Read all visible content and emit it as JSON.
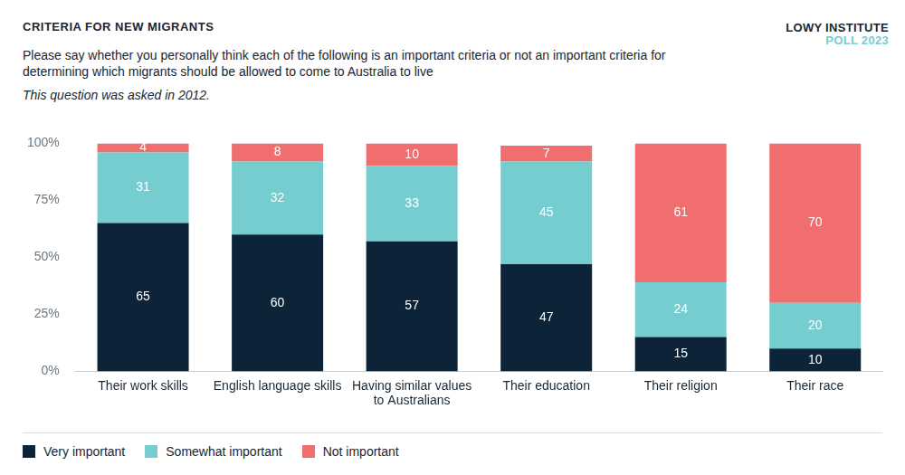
{
  "chart_data": {
    "type": "bar",
    "title": "CRITERIA FOR NEW MIGRANTS",
    "subtitle": "Please say whether you personally think each of the following is an important criteria or not an important criteria for determining which migrants should be allowed to come to Australia to live",
    "note": "This question was asked in 2012.",
    "source": [
      "LOWY INSTITUTE",
      "POLL 2023"
    ],
    "categories": [
      "Their work skills",
      "English language skills",
      "Having similar values to Australians",
      "Their education",
      "Their religion",
      "Their race"
    ],
    "series": [
      {
        "name": "Very important",
        "color": "#0d2438",
        "values": [
          65,
          60,
          57,
          47,
          15,
          10
        ]
      },
      {
        "name": "Somewhat important",
        "color": "#76cdd0",
        "values": [
          31,
          32,
          33,
          45,
          24,
          20
        ]
      },
      {
        "name": "Not important",
        "color": "#f06e6e",
        "values": [
          4,
          8,
          10,
          7,
          61,
          70
        ]
      }
    ],
    "stacked": true,
    "data_labels": true,
    "legend": "bottom-left",
    "grid": false,
    "ylim": [
      0,
      100
    ],
    "yticks": [
      {
        "value": 0,
        "label": "0%"
      },
      {
        "value": 25,
        "label": "25%"
      },
      {
        "value": 50,
        "label": "50%"
      },
      {
        "value": 75,
        "label": "75%"
      },
      {
        "value": 100,
        "label": "100%"
      }
    ]
  }
}
